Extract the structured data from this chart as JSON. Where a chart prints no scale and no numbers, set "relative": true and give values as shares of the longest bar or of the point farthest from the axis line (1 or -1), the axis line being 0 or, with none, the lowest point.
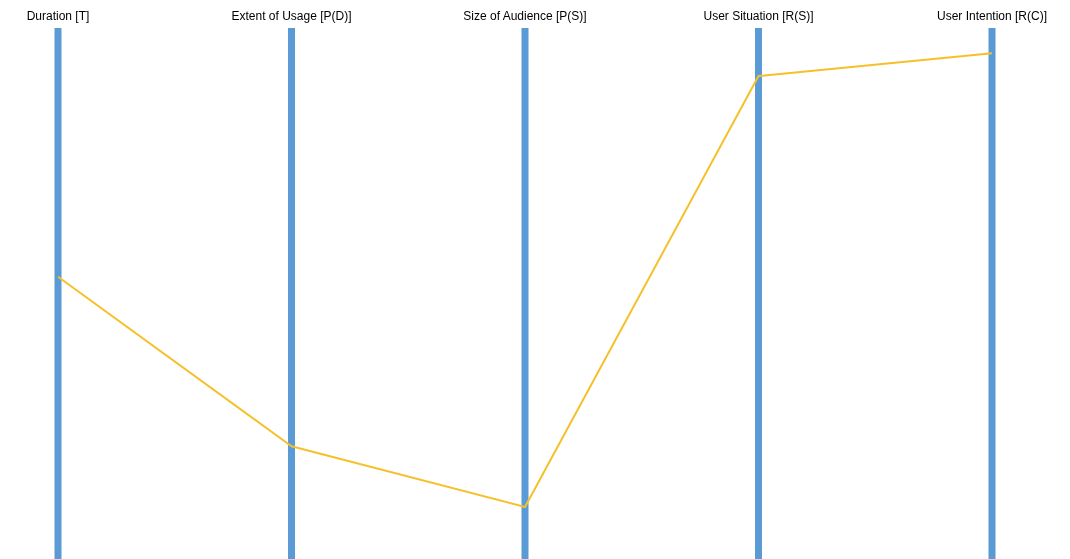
{
  "chart_data": {
    "type": "line",
    "relative": true,
    "grid": "x",
    "categories": [
      "Duration [T]",
      "Extent of Usage [P(D)]",
      "Size of Audience [P(S)]",
      "User Situation [R(S)]",
      "User Intention [R(C)]"
    ],
    "series": [
      {
        "color": "#f5c02a",
        "values": [
          0.558,
          0.223,
          0.103,
          0.955,
          1
        ]
      }
    ]
  }
}
